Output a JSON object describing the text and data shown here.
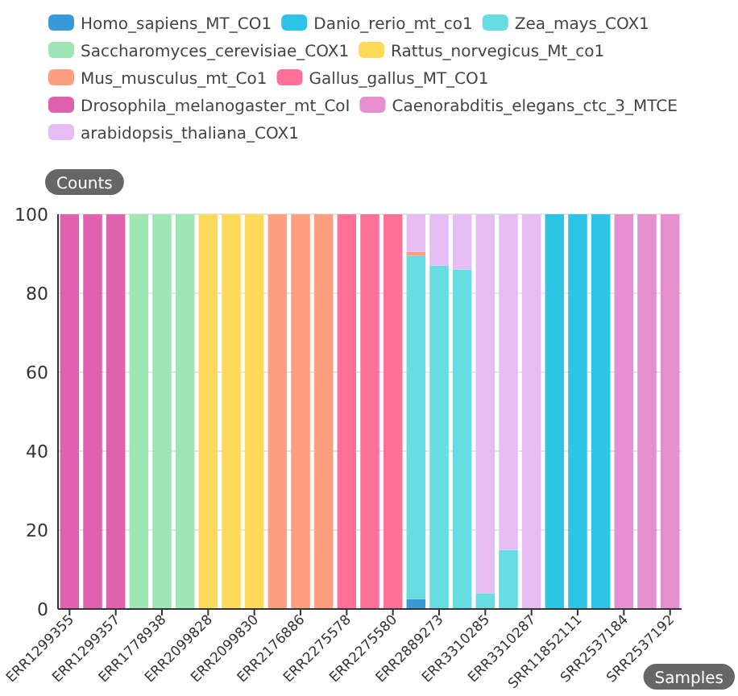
{
  "chart_data": {
    "type": "bar",
    "stacked": true,
    "xlabel": "Samples",
    "ylabel": "Counts",
    "categories": [
      "ERR1299355",
      null,
      "ERR1299357",
      null,
      "ERR1778938",
      null,
      "ERR2099828",
      null,
      "ERR2099830",
      null,
      "ERR2176886",
      null,
      "ERR2275578",
      null,
      "ERR2275580",
      null,
      "ERR2889273",
      null,
      "ERR3310285",
      null,
      "ERR3310287",
      null,
      "SRR11852111",
      null,
      "SRR2537184",
      null,
      "SRR2537192"
    ],
    "series": [
      {
        "name": "Homo_sapiens_MT_CO1",
        "color": "#3a9ad9",
        "values": [
          0,
          0,
          0,
          0,
          0,
          0,
          0,
          0,
          0,
          0,
          0,
          0,
          0,
          0,
          0,
          2.5,
          0,
          0,
          0,
          0,
          0,
          0,
          0,
          0,
          0,
          0,
          0
        ]
      },
      {
        "name": "Danio_rerio_mt_co1",
        "color": "#2ec4e6",
        "values": [
          0,
          0,
          0,
          0,
          0,
          0,
          0,
          0,
          0,
          0,
          0,
          0,
          0,
          0,
          0,
          0,
          0,
          0,
          0,
          0,
          0,
          100,
          100,
          100,
          0,
          0,
          0
        ]
      },
      {
        "name": "Zea_mays_COX1",
        "color": "#66dde0",
        "values": [
          0,
          0,
          0,
          0,
          0,
          0,
          0,
          0,
          0,
          0,
          0,
          0,
          0,
          0,
          0,
          87,
          87,
          86,
          4,
          15,
          0,
          0,
          0,
          0,
          0,
          0,
          0
        ]
      },
      {
        "name": "Saccharomyces_cerevisiae_COX1",
        "color": "#9ee6b4",
        "values": [
          0,
          0,
          0,
          100,
          100,
          100,
          0,
          0,
          0,
          0,
          0,
          0,
          0,
          0,
          0,
          0,
          0,
          0,
          0,
          0,
          0,
          0,
          0,
          0,
          0,
          0,
          0
        ]
      },
      {
        "name": "Rattus_norvegicus_Mt_co1",
        "color": "#ffd95a",
        "values": [
          0,
          0,
          0,
          0,
          0,
          0,
          100,
          100,
          100,
          0,
          0,
          0,
          0,
          0,
          0,
          0,
          0,
          0,
          0,
          0,
          0,
          0,
          0,
          0,
          0,
          0,
          0
        ]
      },
      {
        "name": "Mus_musculus_mt_Co1",
        "color": "#ff9f7f",
        "values": [
          0,
          0,
          0,
          0,
          0,
          0,
          0,
          0,
          0,
          100,
          100,
          100,
          0,
          0,
          0,
          1,
          0,
          0,
          0,
          0,
          0,
          0,
          0,
          0,
          0,
          0,
          0
        ]
      },
      {
        "name": "Gallus_gallus_MT_CO1",
        "color": "#ff7096",
        "values": [
          0,
          0,
          0,
          0,
          0,
          0,
          0,
          0,
          0,
          0,
          0,
          0,
          100,
          100,
          100,
          0,
          0,
          0,
          0,
          0,
          0,
          0,
          0,
          0,
          0,
          0,
          0
        ]
      },
      {
        "name": "Drosophila_melanogaster_mt_CoI",
        "color": "#e062ae",
        "values": [
          100,
          100,
          100,
          0,
          0,
          0,
          0,
          0,
          0,
          0,
          0,
          0,
          0,
          0,
          0,
          0,
          0,
          0,
          0,
          0,
          0,
          0,
          0,
          0,
          0,
          0,
          0
        ]
      },
      {
        "name": "Caenorabditis_elegans_ctc_3_MTCE",
        "color": "#e68fcf",
        "values": [
          0,
          0,
          0,
          0,
          0,
          0,
          0,
          0,
          0,
          0,
          0,
          0,
          0,
          0,
          0,
          0,
          0,
          0,
          0,
          0,
          0,
          0,
          0,
          0,
          100,
          100,
          100
        ]
      },
      {
        "name": "arabidopsis_thaliana_COX1",
        "color": "#e6bdf2",
        "values": [
          0,
          0,
          0,
          0,
          0,
          0,
          0,
          0,
          0,
          0,
          0,
          0,
          0,
          0,
          0,
          9.5,
          13,
          14,
          96,
          85,
          100,
          0,
          0,
          0,
          0,
          0,
          0
        ]
      }
    ],
    "ylim": [
      0,
      100
    ],
    "yticks": [
      0,
      20,
      40,
      60,
      80,
      100
    ],
    "grid": "y",
    "legend": "top"
  }
}
